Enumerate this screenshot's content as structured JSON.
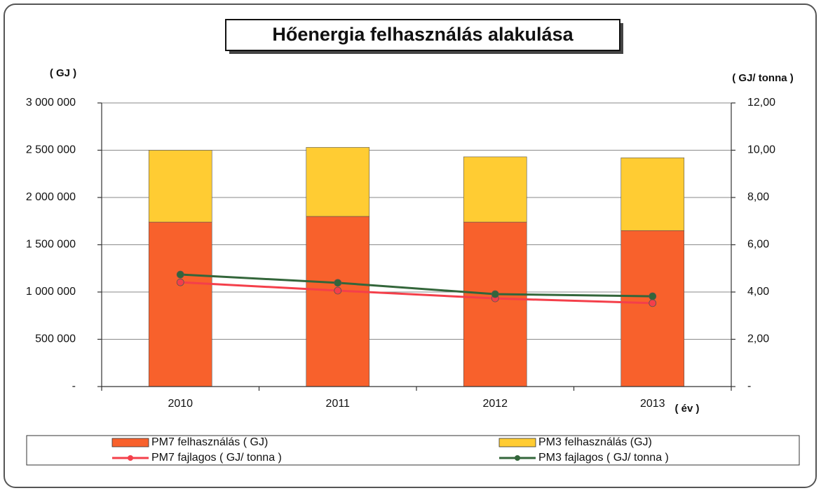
{
  "chart_data": {
    "type": "bar",
    "stacked": true,
    "title": "Hőenergia felhasználás alakulása",
    "y_label": "( GJ )",
    "y2_label": "( GJ/ tonna )",
    "x_label": "( év )",
    "categories": [
      "2010",
      "2011",
      "2012",
      "2013"
    ],
    "series": [
      {
        "name": "PM7 felhasználás ( GJ)",
        "type": "bar",
        "color": "#f8612c",
        "values": [
          1740000,
          1800000,
          1740000,
          1650000
        ]
      },
      {
        "name": "PM3 felhasználás (GJ)",
        "type": "bar",
        "color": "#ffcc33",
        "values": [
          760000,
          730000,
          690000,
          770000
        ]
      },
      {
        "name": "PM7 fajlagos ( GJ/ tonna )",
        "type": "line",
        "axis": "y2",
        "color": "#f43f4a",
        "values": [
          4.41,
          4.06,
          3.73,
          3.53
        ]
      },
      {
        "name": "PM3 fajlagos ( GJ/ tonna )",
        "type": "line",
        "axis": "y2",
        "color": "#33663a",
        "values": [
          4.74,
          4.39,
          3.91,
          3.82
        ]
      }
    ],
    "ylim": [
      0,
      3000000
    ],
    "yticks": [
      {
        "value": 0,
        "label": "-"
      },
      {
        "value": 500000,
        "label": "500 000"
      },
      {
        "value": 1000000,
        "label": "1 000 000"
      },
      {
        "value": 1500000,
        "label": "1 500 000"
      },
      {
        "value": 2000000,
        "label": "2 000 000"
      },
      {
        "value": 2500000,
        "label": "2 500 000"
      },
      {
        "value": 3000000,
        "label": "3 000 000"
      }
    ],
    "y2lim": [
      0,
      12
    ],
    "y2ticks": [
      {
        "value": 0,
        "label": "-"
      },
      {
        "value": 2,
        "label": "2,00"
      },
      {
        "value": 4,
        "label": "4,00"
      },
      {
        "value": 6,
        "label": "6,00"
      },
      {
        "value": 8,
        "label": "8,00"
      },
      {
        "value": 10,
        "label": "10,00"
      },
      {
        "value": 12,
        "label": "12,00"
      }
    ],
    "grid": true,
    "legend": "bottom"
  }
}
